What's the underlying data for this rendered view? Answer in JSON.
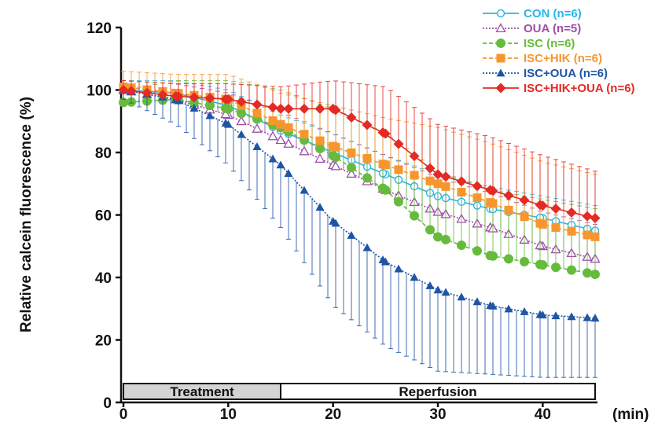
{
  "chart_data": {
    "type": "line",
    "title": "",
    "xlabel": "(min)",
    "ylabel": "Relative calcein fluorescence (%)",
    "xlim": [
      0,
      45
    ],
    "ylim": [
      0,
      120
    ],
    "x_ticks": [
      0,
      10,
      20,
      30,
      40
    ],
    "y_ticks": [
      0,
      20,
      40,
      60,
      80,
      100,
      120
    ],
    "legend_position": "top-right",
    "phases": [
      {
        "label": "Treatment",
        "start": 0,
        "end": 15,
        "color": "#d4d4d4"
      },
      {
        "label": "Reperfusion",
        "start": 15,
        "end": 45,
        "color": "#ffffff"
      }
    ],
    "series": [
      {
        "name": "CON (n=6)",
        "color": "#29b5e6",
        "marker": "circle-open",
        "line": "solid",
        "x": [
          0,
          5,
          10,
          15,
          20,
          25,
          30,
          35,
          40,
          45
        ],
        "y": [
          100,
          99,
          95,
          87,
          80,
          73,
          66,
          62,
          59,
          55
        ],
        "err": [
          3,
          4,
          5,
          5,
          6,
          6,
          7,
          7,
          7,
          8
        ]
      },
      {
        "name": "OUA (n=5)",
        "color": "#9e4fa8",
        "marker": "triangle-open",
        "line": "dotted",
        "x": [
          0,
          5,
          10,
          15,
          20,
          25,
          30,
          35,
          40,
          45
        ],
        "y": [
          100,
          97,
          92,
          84,
          76,
          68,
          61,
          56,
          50,
          46
        ],
        "err": [
          3,
          5,
          7,
          9,
          10,
          11,
          11,
          11,
          11,
          11
        ]
      },
      {
        "name": "ISC (n=6)",
        "color": "#66bb3c",
        "marker": "circle-filled",
        "line": "dashed",
        "x": [
          0,
          5,
          10,
          15,
          20,
          25,
          30,
          35,
          40,
          45
        ],
        "y": [
          96,
          97,
          94,
          88,
          79,
          68,
          53,
          47,
          44,
          41
        ],
        "err": [
          4,
          6,
          9,
          12,
          15,
          18,
          21,
          21,
          21,
          21
        ]
      },
      {
        "name": "ISC+HIK (n=6)",
        "color": "#f7962e",
        "marker": "square-filled",
        "line": "dashed",
        "x": [
          0,
          5,
          10,
          15,
          20,
          25,
          30,
          35,
          40,
          45
        ],
        "y": [
          101,
          99,
          97,
          89,
          82,
          76,
          70,
          64,
          57,
          53
        ],
        "err": [
          5,
          6,
          8,
          10,
          13,
          15,
          18,
          19,
          20,
          20
        ]
      },
      {
        "name": "ISC+OUA (n=6)",
        "color": "#1f55a3",
        "marker": "triangle-filled",
        "line": "dotted",
        "x": [
          0,
          5,
          10,
          15,
          20,
          25,
          30,
          35,
          40,
          45
        ],
        "y": [
          100,
          97,
          89,
          76,
          58,
          45,
          36,
          31,
          28,
          27
        ],
        "err": [
          3,
          8,
          13,
          20,
          27,
          27,
          26,
          22,
          20,
          19
        ]
      },
      {
        "name": "ISC+HIK+OUA (n=6)",
        "color": "#e32a25",
        "marker": "diamond-filled",
        "line": "solid",
        "x": [
          0,
          5,
          10,
          15,
          20,
          25,
          30,
          35,
          40,
          45
        ],
        "y": [
          100,
          98,
          97,
          94,
          94,
          86,
          73,
          68,
          63,
          59
        ],
        "err": [
          3,
          4,
          5,
          7,
          9,
          15,
          16,
          17,
          16,
          15
        ]
      }
    ]
  }
}
